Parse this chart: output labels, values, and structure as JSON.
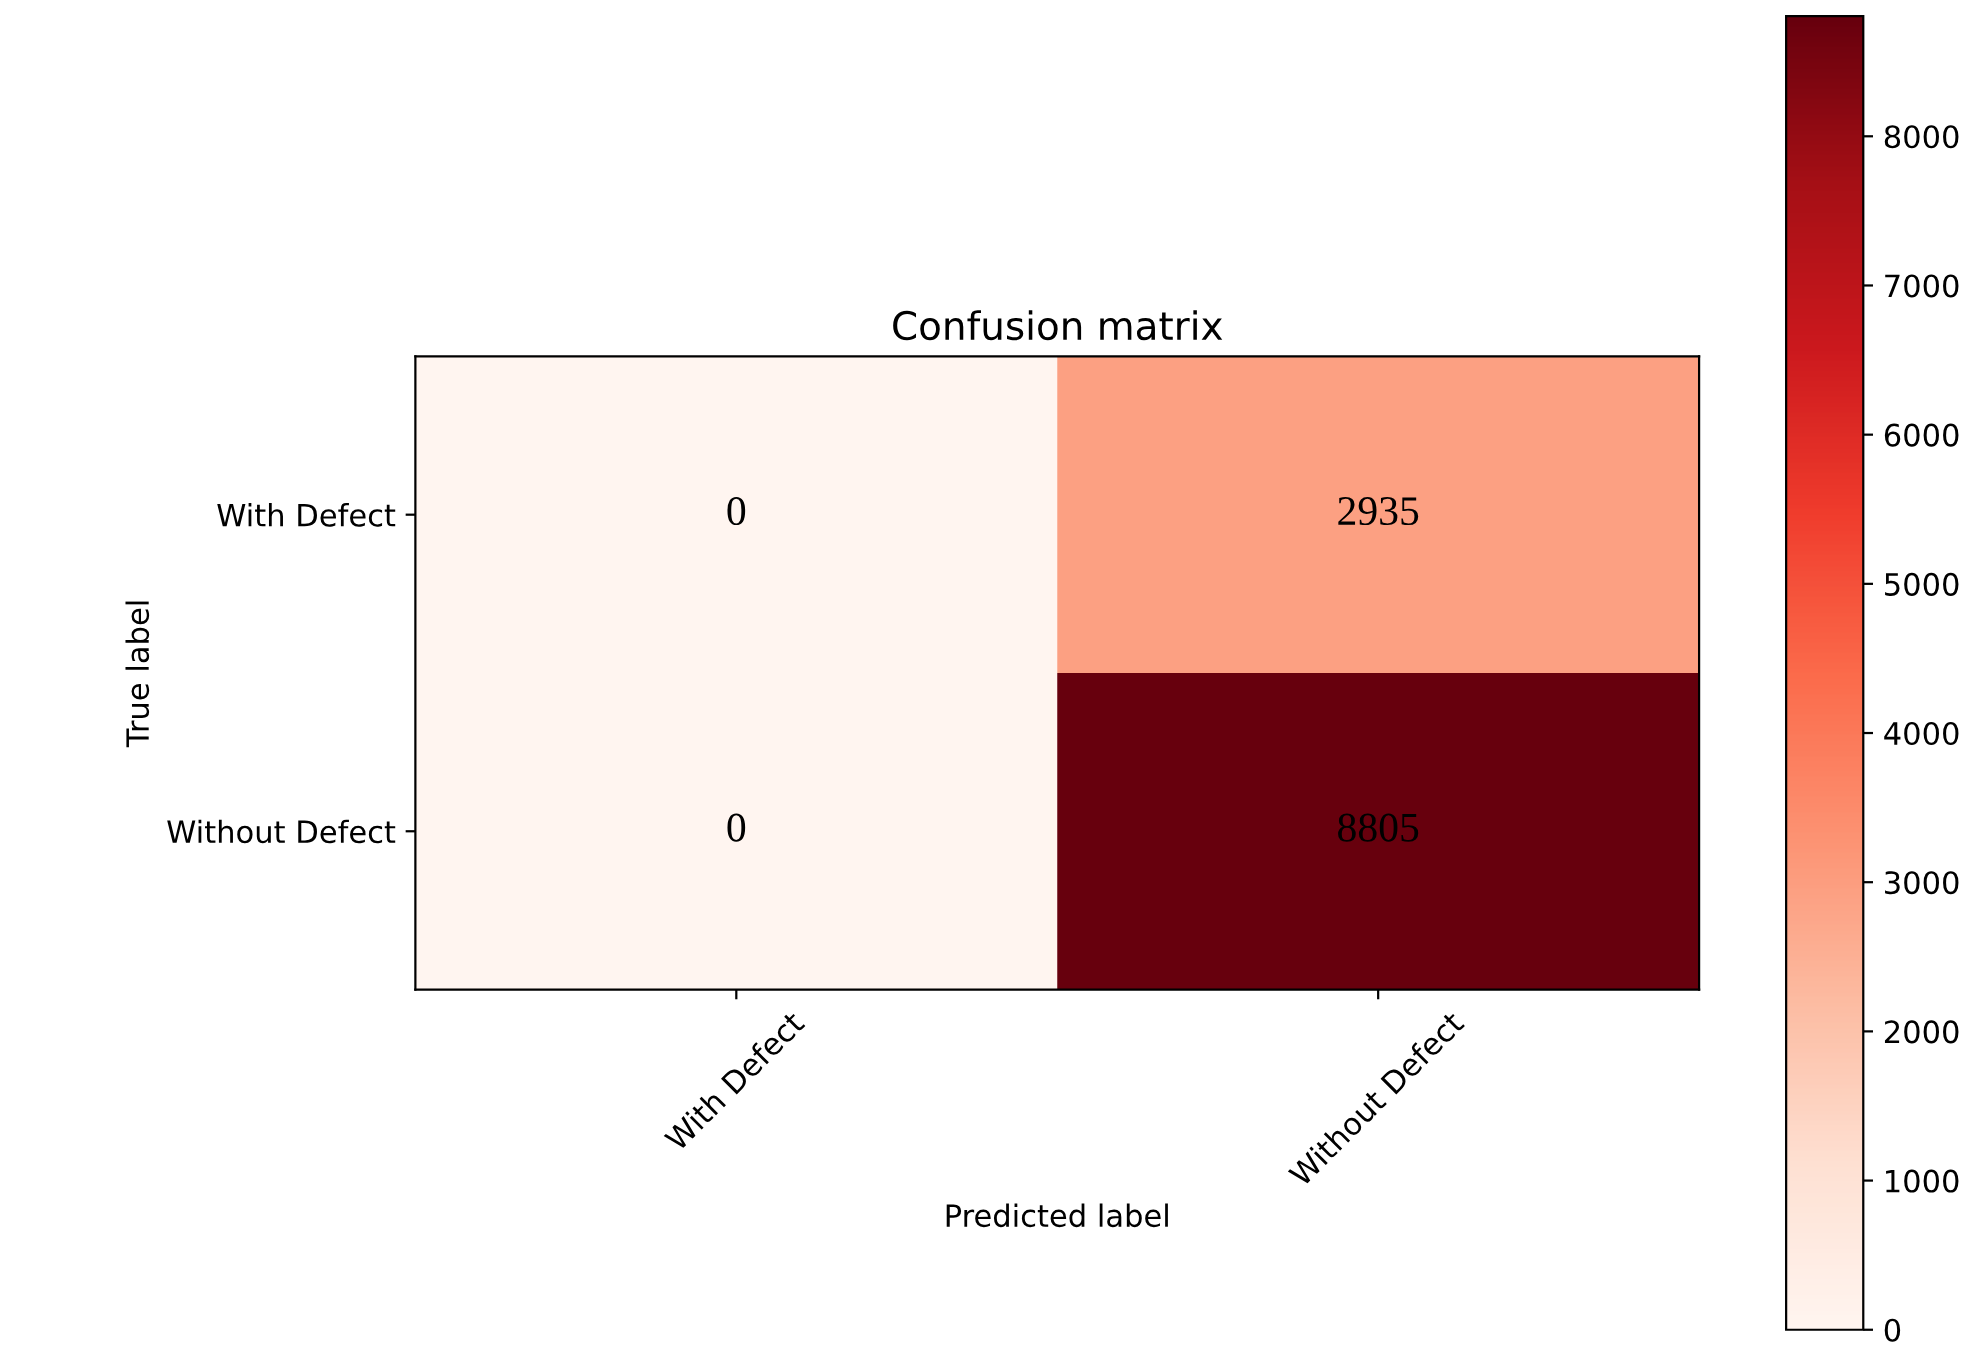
{
  "chart_data": {
    "type": "heatmap",
    "title": "Confusion matrix",
    "xlabel": "Predicted label",
    "ylabel": "True label",
    "categories": [
      "With Defect",
      "Without Defect"
    ],
    "y_categories": [
      "With Defect",
      "Without Defect"
    ],
    "cells": [
      [
        0,
        2935
      ],
      [
        0,
        8805
      ]
    ],
    "data_labels": true,
    "clim": [
      0,
      8805
    ],
    "cticks": [
      0,
      1000,
      2000,
      3000,
      4000,
      5000,
      6000,
      7000,
      8000
    ]
  }
}
